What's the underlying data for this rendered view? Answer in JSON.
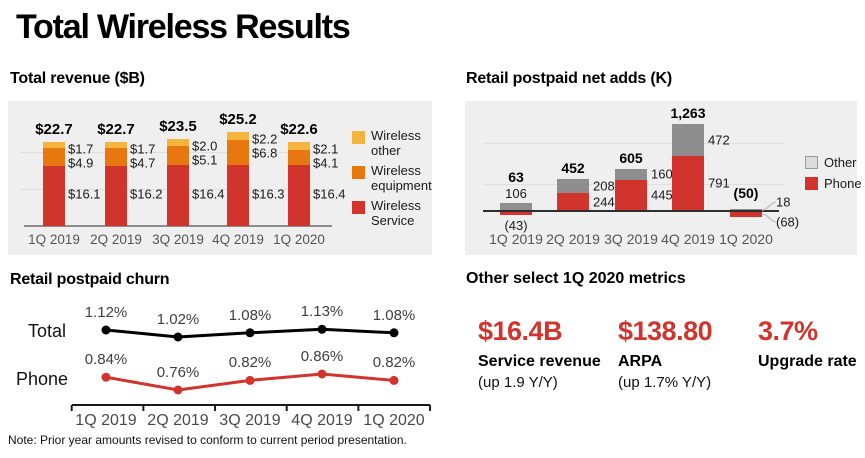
{
  "page": {
    "title": "Total Wireless Results"
  },
  "colors": {
    "red": "#d0342c",
    "orange": "#e8770f",
    "yellow": "#f3b53e",
    "gray": "#8e8e8e",
    "other_swatch": "#dcdcdc",
    "swatch_border": "#9c9c9c",
    "panel_bg": "#efefef",
    "grid": "#dedede",
    "axis_gray": "#8d8d8d",
    "axis_dark": "#2e2e2e",
    "leader": "#c2c2c2",
    "black": "#000000"
  },
  "chart_data": [
    {
      "id": "revenue",
      "type": "bar",
      "stacked": true,
      "title": "Total revenue ($B)",
      "categories": [
        "1Q 2019",
        "2Q 2019",
        "3Q 2019",
        "4Q 2019",
        "1Q 2020"
      ],
      "totals": [
        "$22.7",
        "$22.7",
        "$23.5",
        "$25.2",
        "$22.6"
      ],
      "series": [
        {
          "name": "Wireless Service",
          "color_key": "red",
          "values": [
            16.1,
            16.2,
            16.4,
            16.3,
            16.4
          ],
          "labels": [
            "$16.1",
            "$16.2",
            "$16.4",
            "$16.3",
            "$16.4"
          ]
        },
        {
          "name": "Wireless equipment",
          "color_key": "orange",
          "values": [
            4.9,
            4.7,
            5.1,
            6.8,
            4.1
          ],
          "labels": [
            "$4.9",
            "$4.7",
            "$5.1",
            "$6.8",
            "$4.1"
          ]
        },
        {
          "name": "Wireless other",
          "color_key": "yellow",
          "values": [
            1.7,
            1.7,
            2.0,
            2.2,
            2.1
          ],
          "labels": [
            "$1.7",
            "$1.7",
            "$2.0",
            "$2.2",
            "$2.1"
          ]
        }
      ],
      "legend": [
        {
          "label": "Wireless other",
          "color_key": "yellow"
        },
        {
          "label": "Wireless equipment",
          "color_key": "orange"
        },
        {
          "label": "Wireless Service",
          "color_key": "red"
        }
      ],
      "ylim": [
        0,
        28
      ],
      "grid_values": [
        20,
        10
      ],
      "grid_on": true,
      "legend_position": "right"
    },
    {
      "id": "netadds",
      "type": "bar",
      "stacked": true,
      "title": "Retail postpaid net adds (K)",
      "categories": [
        "1Q 2019",
        "2Q 2019",
        "3Q 2019",
        "4Q 2019",
        "1Q 2020"
      ],
      "totals": [
        "63",
        "452",
        "605",
        "1,263",
        "(50)"
      ],
      "series": [
        {
          "name": "Phone",
          "color_key": "red",
          "values": [
            -43,
            244,
            445,
            791,
            -68
          ],
          "labels": [
            "(43)",
            "244",
            "445",
            "791",
            "(68)"
          ]
        },
        {
          "name": "Other",
          "color_key": "gray",
          "values": [
            106,
            208,
            160,
            472,
            18
          ],
          "labels": [
            "106",
            "208",
            "160",
            "472",
            "18"
          ]
        }
      ],
      "legend": [
        {
          "label": "Other",
          "color_key": "other_swatch"
        },
        {
          "label": "Phone",
          "color_key": "red"
        }
      ],
      "ylim": [
        -250,
        1400
      ],
      "grid_values": [
        1000,
        400
      ],
      "grid_on": true,
      "legend_position": "right"
    },
    {
      "id": "churn",
      "type": "line",
      "title": "Retail postpaid churn",
      "categories": [
        "1Q 2019",
        "2Q 2019",
        "3Q 2019",
        "4Q 2019",
        "1Q 2020"
      ],
      "series": [
        {
          "name": "Total",
          "color_key": "black",
          "values": [
            1.12,
            1.02,
            1.08,
            1.13,
            1.08
          ],
          "labels": [
            "1.12%",
            "1.02%",
            "1.08%",
            "1.13%",
            "1.08%"
          ]
        },
        {
          "name": "Phone",
          "color_key": "red",
          "values": [
            0.84,
            0.76,
            0.82,
            0.86,
            0.82
          ],
          "labels": [
            "0.84%",
            "0.76%",
            "0.82%",
            "0.86%",
            "0.82%"
          ]
        }
      ],
      "note": "Note: Prior year amounts revised to conform to current period presentation.",
      "grid_on": false,
      "legend_position": "left-of-lines"
    }
  ],
  "metrics": {
    "title": "Other select 1Q 2020 metrics",
    "items": [
      {
        "value": "$16.4B",
        "label": "Service revenue",
        "sub": "(up 1.9 Y/Y)"
      },
      {
        "value": "$138.80",
        "label": "ARPA",
        "sub": "(up 1.7% Y/Y)"
      },
      {
        "value": "3.7%",
        "label": "Upgrade rate",
        "sub": ""
      }
    ]
  }
}
